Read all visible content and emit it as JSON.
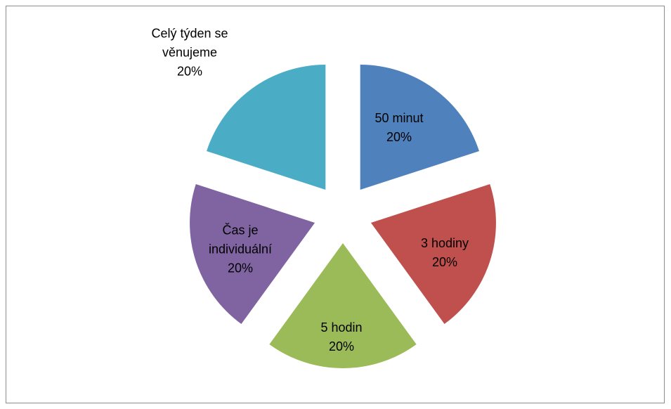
{
  "chart_data": {
    "type": "pie",
    "categories": [
      "50 minut",
      "3 hodiny",
      "5 hodin",
      "Čas je individuální",
      "Celý týden se věnujeme"
    ],
    "values": [
      20,
      20,
      20,
      20,
      20
    ],
    "value_labels": [
      "20%",
      "20%",
      "20%",
      "20%",
      "20%"
    ],
    "colors": [
      "#4f81bd",
      "#c0504d",
      "#9bbb59",
      "#8064a2",
      "#4bacc6"
    ],
    "exploded": true
  }
}
